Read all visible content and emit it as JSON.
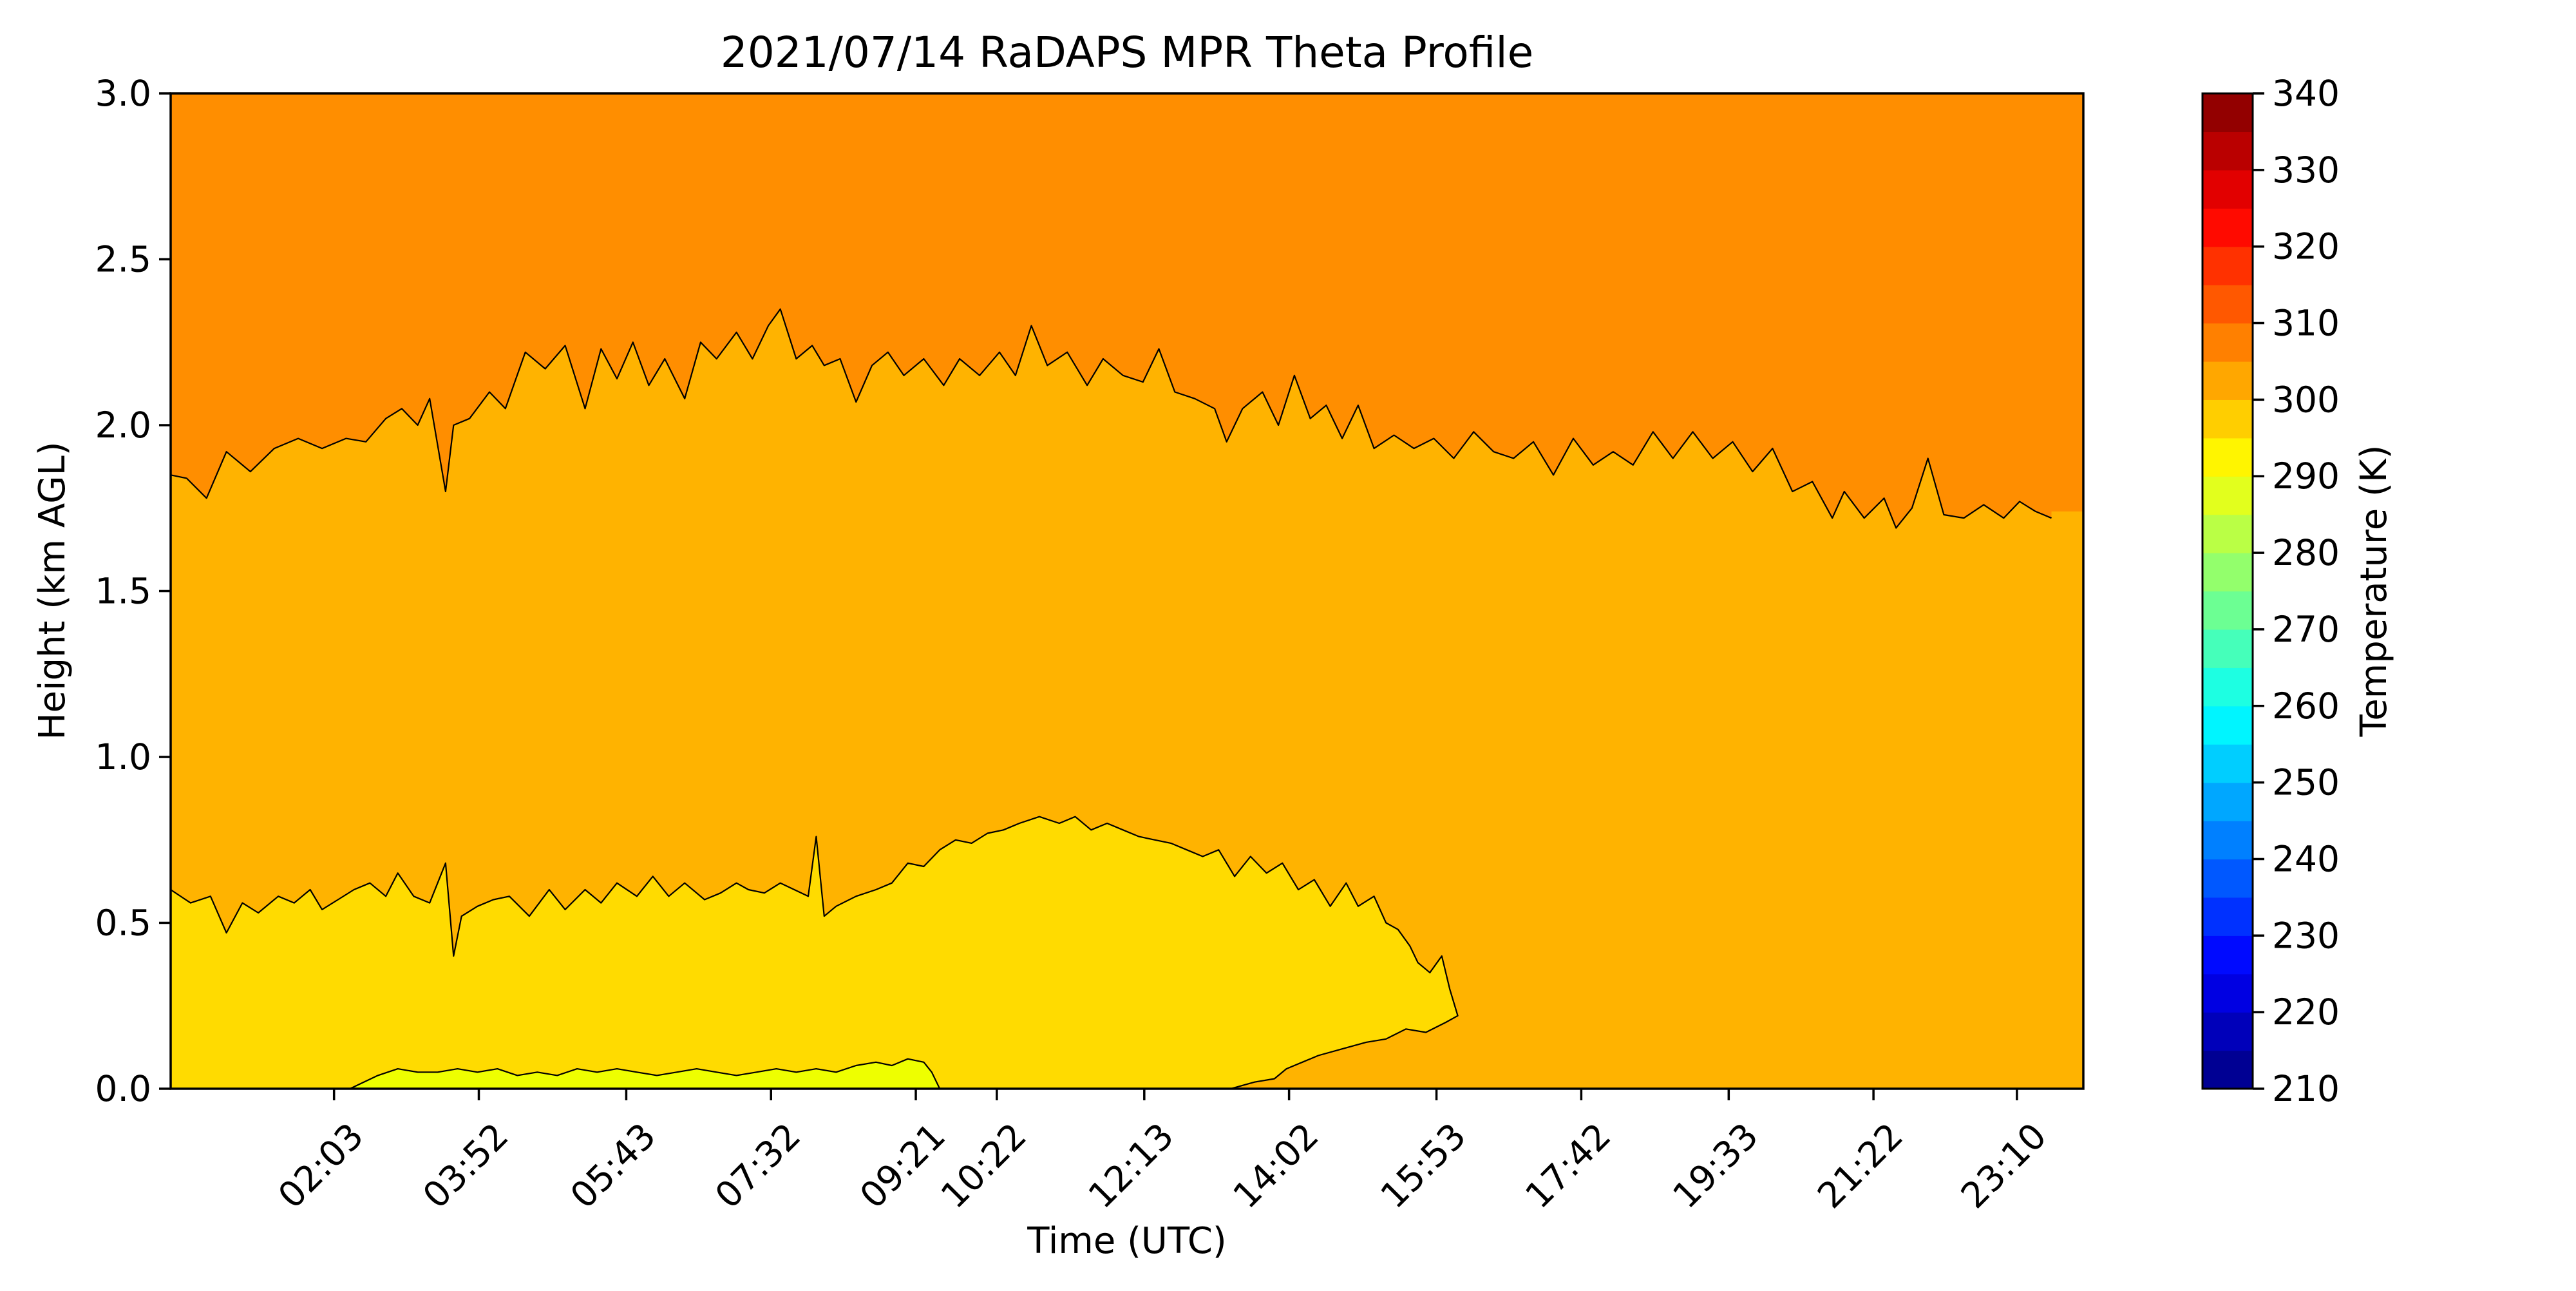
{
  "chart_data": {
    "type": "heatmap",
    "subtype": "filled-contour",
    "title": "2021/07/14 RaDAPS MPR Theta Profile",
    "xlabel": "Time (UTC)",
    "ylabel": "Height (km AGL)",
    "x_tick_labels": [
      "02:03",
      "03:52",
      "05:43",
      "07:32",
      "09:21",
      "10:22",
      "12:13",
      "14:02",
      "15:53",
      "17:42",
      "19:33",
      "21:22",
      "23:10"
    ],
    "x_tick_rotation_deg": 45,
    "ylim": [
      0.0,
      3.0
    ],
    "y_ticks": [
      "0.0",
      "0.5",
      "1.0",
      "1.5",
      "2.0",
      "2.5",
      "3.0"
    ],
    "grid": false,
    "colorbar": {
      "label": "Temperature (K)",
      "range": [
        210,
        340
      ],
      "step": 5,
      "ticks": [
        "210",
        "220",
        "230",
        "240",
        "250",
        "260",
        "270",
        "280",
        "290",
        "300",
        "310",
        "320",
        "330",
        "340"
      ],
      "colormap": "jet",
      "placement": "right"
    },
    "regions": [
      {
        "range_K": [
          305,
          310
        ],
        "color": "#ff8e00",
        "extent": "upper layer above the 305 K contour to 3.0 km"
      },
      {
        "range_K": [
          300,
          305
        ],
        "color": "#ffb300",
        "extent": "middle layer, roughly 0.6 to 2.0 km"
      },
      {
        "range_K": [
          295,
          300
        ],
        "color": "#ffdb00",
        "extent": "surface-based layer, 0 to about 0.8 km, until 18:10 UTC"
      },
      {
        "range_K": [
          290,
          295
        ],
        "color": "#eeff00",
        "extent": "thin near-surface layer, about 03:00 to 11:50 UTC"
      }
    ],
    "contours": [
      {
        "level_K": 305,
        "points": [
          [
            0.0,
            1.85
          ],
          [
            0.2,
            1.84
          ],
          [
            0.45,
            1.78
          ],
          [
            0.7,
            1.92
          ],
          [
            1.0,
            1.86
          ],
          [
            1.3,
            1.93
          ],
          [
            1.6,
            1.96
          ],
          [
            1.9,
            1.93
          ],
          [
            2.2,
            1.96
          ],
          [
            2.45,
            1.95
          ],
          [
            2.7,
            2.02
          ],
          [
            2.9,
            2.05
          ],
          [
            3.1,
            2.0
          ],
          [
            3.25,
            2.08
          ],
          [
            3.45,
            1.8
          ],
          [
            3.55,
            2.0
          ],
          [
            3.75,
            2.02
          ],
          [
            4.0,
            2.1
          ],
          [
            4.2,
            2.05
          ],
          [
            4.45,
            2.22
          ],
          [
            4.7,
            2.17
          ],
          [
            4.95,
            2.24
          ],
          [
            5.2,
            2.05
          ],
          [
            5.4,
            2.23
          ],
          [
            5.6,
            2.14
          ],
          [
            5.8,
            2.25
          ],
          [
            6.0,
            2.12
          ],
          [
            6.2,
            2.2
          ],
          [
            6.45,
            2.08
          ],
          [
            6.65,
            2.25
          ],
          [
            6.85,
            2.2
          ],
          [
            7.1,
            2.28
          ],
          [
            7.3,
            2.2
          ],
          [
            7.5,
            2.3
          ],
          [
            7.65,
            2.35
          ],
          [
            7.85,
            2.2
          ],
          [
            8.05,
            2.24
          ],
          [
            8.2,
            2.18
          ],
          [
            8.4,
            2.2
          ],
          [
            8.6,
            2.07
          ],
          [
            8.8,
            2.18
          ],
          [
            9.0,
            2.22
          ],
          [
            9.2,
            2.15
          ],
          [
            9.45,
            2.2
          ],
          [
            9.7,
            2.12
          ],
          [
            9.9,
            2.2
          ],
          [
            10.15,
            2.15
          ],
          [
            10.4,
            2.22
          ],
          [
            10.6,
            2.15
          ],
          [
            10.8,
            2.3
          ],
          [
            11.0,
            2.18
          ],
          [
            11.25,
            2.22
          ],
          [
            11.5,
            2.12
          ],
          [
            11.7,
            2.2
          ],
          [
            11.95,
            2.15
          ],
          [
            12.2,
            2.13
          ],
          [
            12.4,
            2.23
          ],
          [
            12.6,
            2.1
          ],
          [
            12.85,
            2.08
          ],
          [
            13.1,
            2.05
          ],
          [
            13.25,
            1.95
          ],
          [
            13.45,
            2.05
          ],
          [
            13.7,
            2.1
          ],
          [
            13.9,
            2.0
          ],
          [
            14.1,
            2.15
          ],
          [
            14.3,
            2.02
          ],
          [
            14.5,
            2.06
          ],
          [
            14.7,
            1.96
          ],
          [
            14.9,
            2.06
          ],
          [
            15.1,
            1.93
          ],
          [
            15.35,
            1.97
          ],
          [
            15.6,
            1.93
          ],
          [
            15.85,
            1.96
          ],
          [
            16.1,
            1.9
          ],
          [
            16.35,
            1.98
          ],
          [
            16.6,
            1.92
          ],
          [
            16.85,
            1.9
          ],
          [
            17.1,
            1.95
          ],
          [
            17.35,
            1.85
          ],
          [
            17.6,
            1.96
          ],
          [
            17.85,
            1.88
          ],
          [
            18.1,
            1.92
          ],
          [
            18.35,
            1.88
          ],
          [
            18.6,
            1.98
          ],
          [
            18.85,
            1.9
          ],
          [
            19.1,
            1.98
          ],
          [
            19.35,
            1.9
          ],
          [
            19.6,
            1.95
          ],
          [
            19.85,
            1.86
          ],
          [
            20.1,
            1.93
          ],
          [
            20.35,
            1.8
          ],
          [
            20.6,
            1.83
          ],
          [
            20.85,
            1.72
          ],
          [
            21.0,
            1.8
          ],
          [
            21.25,
            1.72
          ],
          [
            21.5,
            1.78
          ],
          [
            21.65,
            1.69
          ],
          [
            21.85,
            1.75
          ],
          [
            22.05,
            1.9
          ],
          [
            22.25,
            1.73
          ],
          [
            22.5,
            1.72
          ],
          [
            22.75,
            1.76
          ],
          [
            23.0,
            1.72
          ],
          [
            23.2,
            1.77
          ],
          [
            23.4,
            1.74
          ],
          [
            23.6,
            1.72
          ]
        ]
      },
      {
        "level_K": 300,
        "points": [
          [
            0.0,
            0.6
          ],
          [
            0.25,
            0.56
          ],
          [
            0.5,
            0.58
          ],
          [
            0.7,
            0.47
          ],
          [
            0.9,
            0.56
          ],
          [
            1.1,
            0.53
          ],
          [
            1.35,
            0.58
          ],
          [
            1.55,
            0.56
          ],
          [
            1.75,
            0.6
          ],
          [
            1.9,
            0.54
          ],
          [
            2.1,
            0.57
          ],
          [
            2.3,
            0.6
          ],
          [
            2.5,
            0.62
          ],
          [
            2.7,
            0.58
          ],
          [
            2.85,
            0.65
          ],
          [
            3.05,
            0.58
          ],
          [
            3.25,
            0.56
          ],
          [
            3.45,
            0.68
          ],
          [
            3.55,
            0.4
          ],
          [
            3.65,
            0.52
          ],
          [
            3.85,
            0.55
          ],
          [
            4.05,
            0.57
          ],
          [
            4.25,
            0.58
          ],
          [
            4.5,
            0.52
          ],
          [
            4.75,
            0.6
          ],
          [
            4.95,
            0.54
          ],
          [
            5.2,
            0.6
          ],
          [
            5.4,
            0.56
          ],
          [
            5.6,
            0.62
          ],
          [
            5.85,
            0.58
          ],
          [
            6.05,
            0.64
          ],
          [
            6.25,
            0.58
          ],
          [
            6.45,
            0.62
          ],
          [
            6.7,
            0.57
          ],
          [
            6.9,
            0.59
          ],
          [
            7.1,
            0.62
          ],
          [
            7.25,
            0.6
          ],
          [
            7.45,
            0.59
          ],
          [
            7.65,
            0.62
          ],
          [
            8.0,
            0.58
          ],
          [
            8.1,
            0.76
          ],
          [
            8.2,
            0.52
          ],
          [
            8.35,
            0.55
          ],
          [
            8.6,
            0.58
          ],
          [
            8.85,
            0.6
          ],
          [
            9.05,
            0.62
          ],
          [
            9.25,
            0.68
          ],
          [
            9.45,
            0.67
          ],
          [
            9.65,
            0.72
          ],
          [
            9.85,
            0.75
          ],
          [
            10.05,
            0.74
          ],
          [
            10.25,
            0.77
          ],
          [
            10.45,
            0.78
          ],
          [
            10.65,
            0.8
          ],
          [
            10.9,
            0.82
          ],
          [
            11.15,
            0.8
          ],
          [
            11.35,
            0.82
          ],
          [
            11.55,
            0.78
          ],
          [
            11.75,
            0.8
          ],
          [
            11.95,
            0.78
          ],
          [
            12.15,
            0.76
          ],
          [
            12.35,
            0.75
          ],
          [
            12.55,
            0.74
          ],
          [
            12.75,
            0.72
          ],
          [
            12.95,
            0.7
          ],
          [
            13.15,
            0.72
          ],
          [
            13.35,
            0.64
          ],
          [
            13.55,
            0.7
          ],
          [
            13.75,
            0.65
          ],
          [
            13.95,
            0.68
          ],
          [
            14.15,
            0.6
          ],
          [
            14.35,
            0.63
          ],
          [
            14.55,
            0.55
          ],
          [
            14.75,
            0.62
          ],
          [
            14.9,
            0.55
          ],
          [
            15.1,
            0.58
          ],
          [
            15.25,
            0.5
          ],
          [
            15.4,
            0.48
          ],
          [
            15.55,
            0.43
          ],
          [
            15.65,
            0.38
          ],
          [
            15.8,
            0.35
          ],
          [
            15.95,
            0.4
          ],
          [
            16.05,
            0.3
          ],
          [
            16.15,
            0.22
          ],
          [
            16.0,
            0.2
          ],
          [
            15.75,
            0.17
          ],
          [
            15.5,
            0.18
          ],
          [
            15.25,
            0.15
          ],
          [
            15.0,
            0.14
          ],
          [
            14.7,
            0.12
          ],
          [
            14.4,
            0.1
          ],
          [
            14.2,
            0.08
          ],
          [
            14.0,
            0.06
          ],
          [
            13.85,
            0.03
          ],
          [
            13.6,
            0.02
          ],
          [
            13.3,
            0.0
          ]
        ]
      },
      {
        "level_K": 295,
        "points": [
          [
            2.25,
            0.0
          ],
          [
            2.6,
            0.04
          ],
          [
            2.85,
            0.06
          ],
          [
            3.1,
            0.05
          ],
          [
            3.35,
            0.05
          ],
          [
            3.6,
            0.06
          ],
          [
            3.85,
            0.05
          ],
          [
            4.1,
            0.06
          ],
          [
            4.35,
            0.04
          ],
          [
            4.6,
            0.05
          ],
          [
            4.85,
            0.04
          ],
          [
            5.1,
            0.06
          ],
          [
            5.35,
            0.05
          ],
          [
            5.6,
            0.06
          ],
          [
            5.85,
            0.05
          ],
          [
            6.1,
            0.04
          ],
          [
            6.35,
            0.05
          ],
          [
            6.6,
            0.06
          ],
          [
            6.85,
            0.05
          ],
          [
            7.1,
            0.04
          ],
          [
            7.35,
            0.05
          ],
          [
            7.6,
            0.06
          ],
          [
            7.85,
            0.05
          ],
          [
            8.1,
            0.06
          ],
          [
            8.35,
            0.05
          ],
          [
            8.6,
            0.07
          ],
          [
            8.85,
            0.08
          ],
          [
            9.05,
            0.07
          ],
          [
            9.25,
            0.09
          ],
          [
            9.45,
            0.08
          ],
          [
            9.55,
            0.05
          ],
          [
            9.65,
            0.0
          ]
        ]
      }
    ]
  }
}
